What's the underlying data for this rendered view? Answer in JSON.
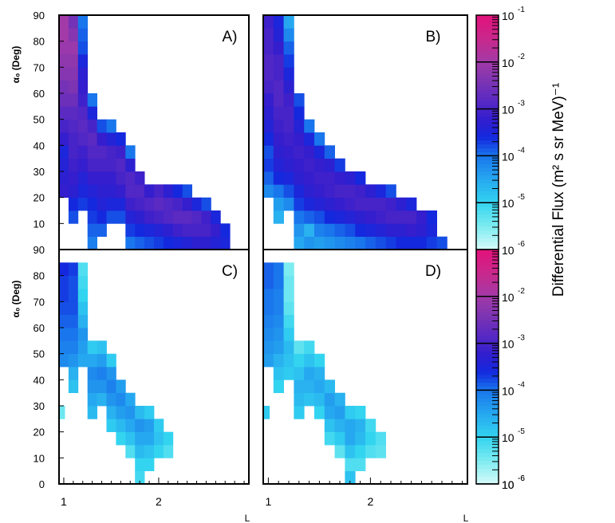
{
  "chart_data": {
    "type": "heatmap",
    "layout": "2x2 panels with shared vertical color scale",
    "xlabel": "L",
    "ylabel": "α₀ (Deg)",
    "x_tick_labels": [
      "1",
      "2"
    ],
    "y_tick_labels_top": [
      "10",
      "20",
      "30",
      "40",
      "50",
      "60",
      "70",
      "80",
      "90"
    ],
    "y_tick_labels_bottom": [
      "0",
      "10",
      "20",
      "30",
      "40",
      "50",
      "60",
      "70",
      "80",
      "90"
    ],
    "x_range": [
      0.95,
      2.95
    ],
    "y_range": [
      0,
      90
    ],
    "cell_size": {
      "dL": 0.1,
      "dalpha": 5
    },
    "colorbar": {
      "label": "Differential Flux (m² s sr MeV)⁻¹",
      "tick_labels": [
        "10",
        "10",
        "10",
        "10",
        "10",
        "10"
      ],
      "tick_exponents": [
        "-6",
        "-5",
        "-4",
        "-3",
        "-2",
        "-1"
      ],
      "log_range": [
        -6,
        -1
      ]
    },
    "panels": [
      {
        "label": "A)",
        "note": "log10 flux per cell, L centers 1.0..2.7 (0.1 step), alpha bins 5 deg",
        "columns": [
          {
            "L": 1.0,
            "alpha_from": 22.5,
            "values": [
              -3.2,
              -3.3,
              -3.4,
              -3.5,
              -3.2,
              -3.0,
              -2.8,
              -2.6,
              -2.5,
              -2.3,
              -2.2,
              -2.1,
              -2.0,
              -2.0
            ]
          },
          {
            "L": 1.1,
            "alpha_from": 12.5,
            "values": [
              -3.8,
              -3.6,
              -3.3,
              -3.2,
              -3.1,
              -3.0,
              -3.0,
              -2.9,
              -2.8,
              -2.6,
              -2.4,
              -2.3,
              -2.2,
              -2.1,
              -2.3,
              -2.5
            ]
          },
          {
            "L": 1.2,
            "alpha_from": 17.5,
            "values": [
              -3.7,
              -3.5,
              -3.4,
              -3.2,
              -3.1,
              -2.9,
              -2.8,
              -2.9,
              -3.1,
              -3.2,
              -3.3,
              -3.5,
              -3.8,
              -3.9,
              -4.0
            ]
          },
          {
            "L": 1.3,
            "alpha_from": 2.5,
            "values": [
              -4.1,
              -3.9,
              -3.7,
              -3.6,
              -3.4,
              -3.2,
              -3.0,
              -2.9,
              -2.8,
              -3.0,
              -3.5,
              -4.0
            ]
          },
          {
            "L": 1.4,
            "alpha_from": 7.5,
            "values": [
              -3.9,
              -3.6,
              -3.4,
              -3.3,
              -3.2,
              -3.0,
              -2.9,
              -3.2,
              -3.8
            ]
          },
          {
            "L": 1.5,
            "alpha_from": 12.5,
            "values": [
              -3.8,
              -3.5,
              -3.3,
              -3.2,
              -3.0,
              -3.0,
              -3.4,
              -4.0
            ]
          },
          {
            "L": 1.6,
            "alpha_from": 12.5,
            "values": [
              -3.8,
              -3.5,
              -3.2,
              -3.0,
              -2.9,
              -3.1,
              -3.6
            ]
          },
          {
            "L": 1.7,
            "alpha_from": 2.5,
            "values": [
              -4.0,
              -3.7,
              -3.4,
              -3.1,
              -2.9,
              -2.9,
              -3.3,
              -4.0
            ]
          },
          {
            "L": 1.8,
            "alpha_from": 2.5,
            "values": [
              -3.9,
              -3.6,
              -3.3,
              -3.0,
              -2.9,
              -3.1
            ]
          },
          {
            "L": 1.9,
            "alpha_from": 2.5,
            "values": [
              -3.8,
              -3.5,
              -3.1,
              -2.9,
              -3.2
            ]
          },
          {
            "L": 2.0,
            "alpha_from": 2.5,
            "values": [
              -3.7,
              -3.4,
              -3.0,
              -2.8,
              -3.0
            ]
          },
          {
            "L": 2.1,
            "alpha_from": 2.5,
            "values": [
              -3.6,
              -3.3,
              -2.9,
              -2.9,
              -3.3
            ]
          },
          {
            "L": 2.2,
            "alpha_from": 2.5,
            "values": [
              -3.5,
              -3.1,
              -2.8,
              -3.0,
              -3.6
            ]
          },
          {
            "L": 2.3,
            "alpha_from": 2.5,
            "values": [
              -3.4,
              -3.0,
              -2.8,
              -3.2,
              -3.8
            ]
          },
          {
            "L": 2.4,
            "alpha_from": 2.5,
            "values": [
              -3.3,
              -3.0,
              -2.9,
              -3.5
            ]
          },
          {
            "L": 2.5,
            "alpha_from": 2.5,
            "values": [
              -3.3,
              -3.0,
              -3.1,
              -3.8
            ]
          },
          {
            "L": 2.6,
            "alpha_from": 2.5,
            "values": [
              -3.4,
              -3.2,
              -3.5
            ]
          },
          {
            "L": 2.7,
            "alpha_from": 2.5,
            "values": [
              -3.5,
              -3.6
            ]
          }
        ]
      },
      {
        "label": "B)",
        "note": "log10 flux per cell",
        "columns": [
          {
            "L": 1.0,
            "alpha_from": 22.5,
            "values": [
              -4.2,
              -3.9,
              -3.7,
              -3.8,
              -3.6,
              -3.4,
              -3.3,
              -3.2,
              -3.0,
              -2.9,
              -2.9,
              -3.0,
              -3.0,
              -3.1
            ]
          },
          {
            "L": 1.1,
            "alpha_from": 12.5,
            "values": [
              -4.6,
              -4.4,
              -4.0,
              -3.6,
              -3.4,
              -3.3,
              -3.2,
              -3.1,
              -3.0,
              -2.9,
              -2.9,
              -3.0,
              -3.0,
              -3.2,
              -3.4,
              -3.5
            ]
          },
          {
            "L": 1.2,
            "alpha_from": 17.5,
            "values": [
              -4.2,
              -3.8,
              -3.5,
              -3.3,
              -3.2,
              -3.1,
              -3.0,
              -3.0,
              -3.1,
              -3.3,
              -3.5,
              -3.7,
              -3.9,
              -4.2,
              -4.5
            ]
          },
          {
            "L": 1.3,
            "alpha_from": 2.5,
            "values": [
              -4.5,
              -4.3,
              -4.0,
              -3.7,
              -3.5,
              -3.3,
              -3.2,
              -3.1,
              -3.2,
              -3.4,
              -3.6,
              -3.8
            ]
          },
          {
            "L": 1.4,
            "alpha_from": 2.5,
            "values": [
              -4.3,
              -4.6,
              -3.9,
              -3.5,
              -3.3,
              -3.2,
              -3.1,
              -3.2,
              -3.5,
              -4.0
            ]
          },
          {
            "L": 1.5,
            "alpha_from": 2.5,
            "values": [
              -4.4,
              -4.1,
              -3.8,
              -3.4,
              -3.2,
              -3.1,
              -3.2,
              -3.5,
              -4.0
            ]
          },
          {
            "L": 1.6,
            "alpha_from": 2.5,
            "values": [
              -4.3,
              -4.0,
              -3.6,
              -3.3,
              -3.1,
              -3.1,
              -3.3,
              -3.9
            ]
          },
          {
            "L": 1.7,
            "alpha_from": 2.5,
            "values": [
              -4.2,
              -3.9,
              -3.5,
              -3.2,
              -3.0,
              -3.2,
              -3.7
            ]
          },
          {
            "L": 1.8,
            "alpha_from": 2.5,
            "values": [
              -4.1,
              -3.8,
              -3.4,
              -3.1,
              -3.0,
              -3.3
            ]
          },
          {
            "L": 1.9,
            "alpha_from": 2.5,
            "values": [
              -4.0,
              -3.6,
              -3.3,
              -3.0,
              -3.1,
              -3.6
            ]
          },
          {
            "L": 2.0,
            "alpha_from": 2.5,
            "values": [
              -3.9,
              -3.5,
              -3.2,
              -3.0,
              -3.3
            ]
          },
          {
            "L": 2.1,
            "alpha_from": 2.5,
            "values": [
              -3.8,
              -3.4,
              -3.1,
              -3.0,
              -3.5
            ]
          },
          {
            "L": 2.2,
            "alpha_from": 2.5,
            "values": [
              -3.7,
              -3.3,
              -3.0,
              -3.1,
              -3.8
            ]
          },
          {
            "L": 2.3,
            "alpha_from": 2.5,
            "values": [
              -3.6,
              -3.3,
              -3.0,
              -3.3
            ]
          },
          {
            "L": 2.4,
            "alpha_from": 2.5,
            "values": [
              -3.6,
              -3.2,
              -3.0,
              -3.5
            ]
          },
          {
            "L": 2.5,
            "alpha_from": 2.5,
            "values": [
              -3.6,
              -3.3,
              -3.2
            ]
          },
          {
            "L": 2.6,
            "alpha_from": 2.5,
            "values": [
              -3.7,
              -3.5,
              -3.6
            ]
          },
          {
            "L": 2.7,
            "alpha_from": 2.5,
            "values": [
              -3.8
            ]
          }
        ]
      },
      {
        "label": "C)",
        "note": "log10 flux per cell",
        "columns": [
          {
            "L": 1.0,
            "alpha_from": 47.5,
            "values": [
              -4.2,
              -4.1,
              -4.0,
              -3.9,
              -3.8,
              -3.7,
              -3.7,
              -3.6
            ]
          },
          {
            "L": 1.1,
            "alpha_from": 37.5,
            "values": [
              -4.8,
              -4.6,
              -4.3,
              -4.1,
              -4.0,
              -3.9,
              -3.8,
              -3.8,
              -3.8,
              -3.7
            ]
          },
          {
            "L": 1.2,
            "alpha_from": 47.5,
            "values": [
              -4.5,
              -4.4,
              -4.3,
              -4.6,
              -4.8,
              -5.0,
              -5.1,
              -5.2
            ]
          },
          {
            "L": 1.3,
            "alpha_from": 27.5,
            "values": [
              -4.7,
              -4.5,
              -4.3,
              -4.2,
              -4.5,
              -4.9
            ]
          },
          {
            "L": 1.4,
            "alpha_from": 32.5,
            "values": [
              -4.6,
              -4.3,
              -4.1,
              -4.4,
              -4.8
            ]
          },
          {
            "L": 1.5,
            "alpha_from": 22.5,
            "values": [
              -4.9,
              -4.6,
              -4.3,
              -4.1,
              -4.3,
              -4.9
            ]
          },
          {
            "L": 1.6,
            "alpha_from": 17.5,
            "values": [
              -5.0,
              -4.7,
              -4.4,
              -4.2,
              -4.4
            ]
          },
          {
            "L": 1.7,
            "alpha_from": 12.5,
            "values": [
              -5.2,
              -4.8,
              -4.5,
              -4.3,
              -4.5
            ]
          },
          {
            "L": 1.8,
            "alpha_from": 2.5,
            "values": [
              -5.1,
              -5.0,
              -4.7,
              -4.5,
              -4.3,
              -4.7
            ]
          },
          {
            "L": 1.9,
            "alpha_from": 7.5,
            "values": [
              -5.0,
              -4.8,
              -4.5,
              -4.4,
              -4.9
            ]
          },
          {
            "L": 2.0,
            "alpha_from": 12.5,
            "values": [
              -5.0,
              -4.8,
              -4.9
            ]
          },
          {
            "L": 2.1,
            "alpha_from": 12.5,
            "values": [
              -5.2,
              -5.0
            ]
          },
          {
            "L": 0.96,
            "alpha_from": 27.5,
            "values": [
              -5.4
            ]
          }
        ]
      },
      {
        "label": "D)",
        "note": "log10 flux per cell",
        "columns": [
          {
            "L": 1.0,
            "alpha_from": 47.5,
            "values": [
              -4.4,
              -4.3,
              -4.2,
              -4.1,
              -4.0,
              -4.0,
              -3.9,
              -3.9
            ]
          },
          {
            "L": 1.1,
            "alpha_from": 37.5,
            "values": [
              -5.0,
              -4.8,
              -4.6,
              -4.4,
              -4.3,
              -4.2,
              -4.1,
              -4.1,
              -4.0,
              -4.0
            ]
          },
          {
            "L": 1.2,
            "alpha_from": 42.5,
            "values": [
              -4.9,
              -4.8,
              -4.7,
              -4.9,
              -5.1,
              -5.3,
              -5.4,
              -5.4,
              -5.5
            ]
          },
          {
            "L": 1.3,
            "alpha_from": 27.5,
            "values": [
              -4.9,
              -4.7,
              -4.6,
              -4.8,
              -5.0,
              -5.3
            ]
          },
          {
            "L": 1.4,
            "alpha_from": 32.5,
            "values": [
              -4.8,
              -4.6,
              -4.5,
              -4.8,
              -5.1
            ]
          },
          {
            "L": 1.5,
            "alpha_from": 27.5,
            "values": [
              -5.0,
              -4.7,
              -4.5,
              -4.6,
              -5.0
            ]
          },
          {
            "L": 1.6,
            "alpha_from": 17.5,
            "values": [
              -5.1,
              -4.8,
              -4.5,
              -4.4,
              -4.7
            ]
          },
          {
            "L": 1.7,
            "alpha_from": 12.5,
            "values": [
              -5.3,
              -4.9,
              -4.6,
              -4.4,
              -4.6
            ]
          },
          {
            "L": 1.8,
            "alpha_from": 2.5,
            "values": [
              -4.8,
              -5.2,
              -4.8,
              -4.5,
              -4.5,
              -4.9
            ]
          },
          {
            "L": 1.9,
            "alpha_from": 7.5,
            "values": [
              -5.2,
              -5.0,
              -4.7,
              -4.6,
              -5.0
            ]
          },
          {
            "L": 2.0,
            "alpha_from": 12.5,
            "values": [
              -5.2,
              -5.0,
              -5.1
            ]
          },
          {
            "L": 2.1,
            "alpha_from": 12.5,
            "values": [
              -5.3,
              -5.2
            ]
          },
          {
            "L": 0.96,
            "alpha_from": 27.5,
            "values": [
              -4.9
            ]
          }
        ]
      }
    ]
  }
}
